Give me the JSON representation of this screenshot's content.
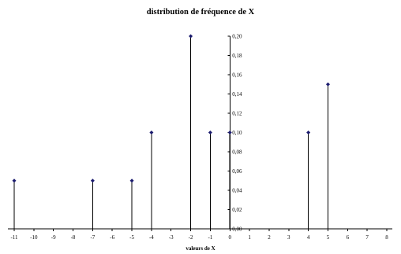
{
  "chart_data": {
    "type": "stem",
    "title": "distribution de fréquence de X",
    "xlabel": "valeurs de X",
    "ylabel": "",
    "xlim": [
      -11,
      8
    ],
    "ylim": [
      0,
      0.2
    ],
    "x_ticks": [
      -11,
      -10,
      -9,
      -8,
      -7,
      -6,
      -5,
      -4,
      -3,
      -2,
      -1,
      0,
      1,
      2,
      3,
      4,
      5,
      6,
      7,
      8
    ],
    "y_ticks": [
      "0,00",
      "0,02",
      "0,04",
      "0,06",
      "0,08",
      "0,10",
      "0,12",
      "0,14",
      "0,16",
      "0,18",
      "0,20"
    ],
    "grid": false,
    "legend": "none",
    "marker_color": "#1a1a6e",
    "points": [
      {
        "x": -11,
        "y": 0.05
      },
      {
        "x": -7,
        "y": 0.05
      },
      {
        "x": -5,
        "y": 0.05
      },
      {
        "x": -4,
        "y": 0.1
      },
      {
        "x": -2,
        "y": 0.2
      },
      {
        "x": -1,
        "y": 0.1
      },
      {
        "x": 0,
        "y": 0.1
      },
      {
        "x": 4,
        "y": 0.1
      },
      {
        "x": 5,
        "y": 0.15
      }
    ]
  }
}
